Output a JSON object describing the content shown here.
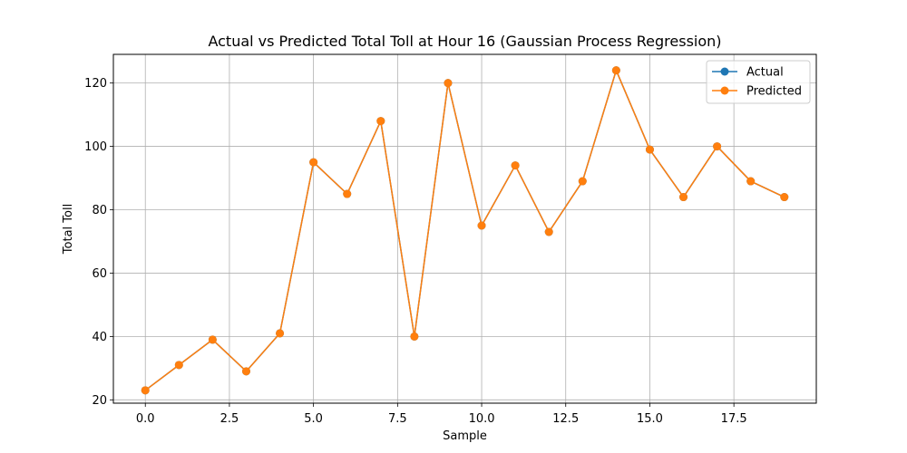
{
  "chart_data": {
    "type": "line",
    "title": "Actual vs Predicted Total Toll at Hour 16 (Gaussian Process Regression)",
    "xlabel": "Sample",
    "ylabel": "Total Toll",
    "xlim": [
      -0.95,
      19.95
    ],
    "ylim": [
      18.95,
      129.05
    ],
    "x_ticks": [
      0.0,
      2.5,
      5.0,
      7.5,
      10.0,
      12.5,
      15.0,
      17.5
    ],
    "x_tick_labels": [
      "0.0",
      "2.5",
      "5.0",
      "7.5",
      "10.0",
      "12.5",
      "15.0",
      "17.5"
    ],
    "y_ticks": [
      20,
      40,
      60,
      80,
      100,
      120
    ],
    "y_tick_labels": [
      "20",
      "40",
      "60",
      "80",
      "100",
      "120"
    ],
    "grid": true,
    "legend_position": "top-right",
    "x": [
      0,
      1,
      2,
      3,
      4,
      5,
      6,
      7,
      8,
      9,
      10,
      11,
      12,
      13,
      14,
      15,
      16,
      17,
      18,
      19
    ],
    "series": [
      {
        "name": "Actual",
        "color": "#1f77b4",
        "marker": "circle",
        "values": [
          23,
          31,
          39,
          29,
          41,
          95,
          85,
          108,
          40,
          120,
          75,
          94,
          73,
          89,
          124,
          99,
          84,
          100,
          89,
          84
        ]
      },
      {
        "name": "Predicted",
        "color": "#ff7f0e",
        "marker": "circle",
        "values": [
          23,
          31,
          39,
          29,
          41,
          95,
          85,
          108,
          40,
          120,
          75,
          94,
          73,
          89,
          124,
          99,
          84,
          100,
          89,
          84
        ]
      }
    ]
  }
}
